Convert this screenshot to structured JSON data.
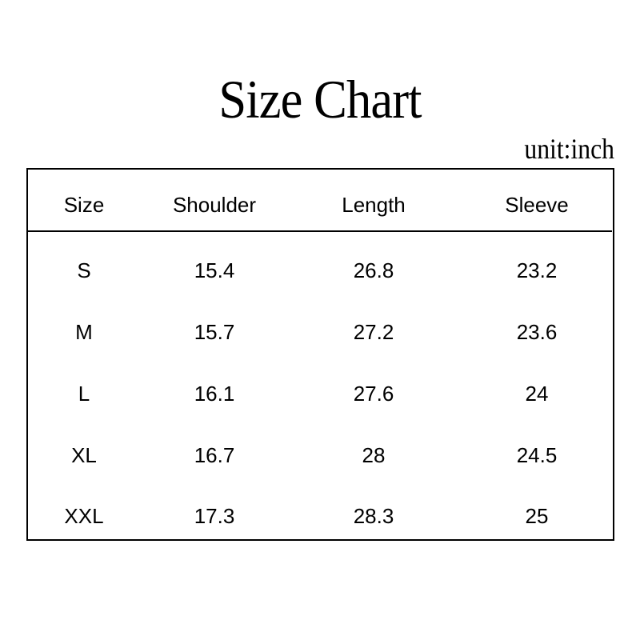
{
  "title": "Size Chart",
  "unit": "unit:inch",
  "table": {
    "headers": [
      "Size",
      "Shoulder",
      "Length",
      "Sleeve"
    ],
    "rows": [
      [
        "S",
        "15.4",
        "26.8",
        "23.2"
      ],
      [
        "M",
        "15.7",
        "27.2",
        "23.6"
      ],
      [
        "L",
        "16.1",
        "27.6",
        "24"
      ],
      [
        "XL",
        "16.7",
        "28",
        "24.5"
      ],
      [
        "XXL",
        "17.3",
        "28.3",
        "25"
      ]
    ]
  }
}
